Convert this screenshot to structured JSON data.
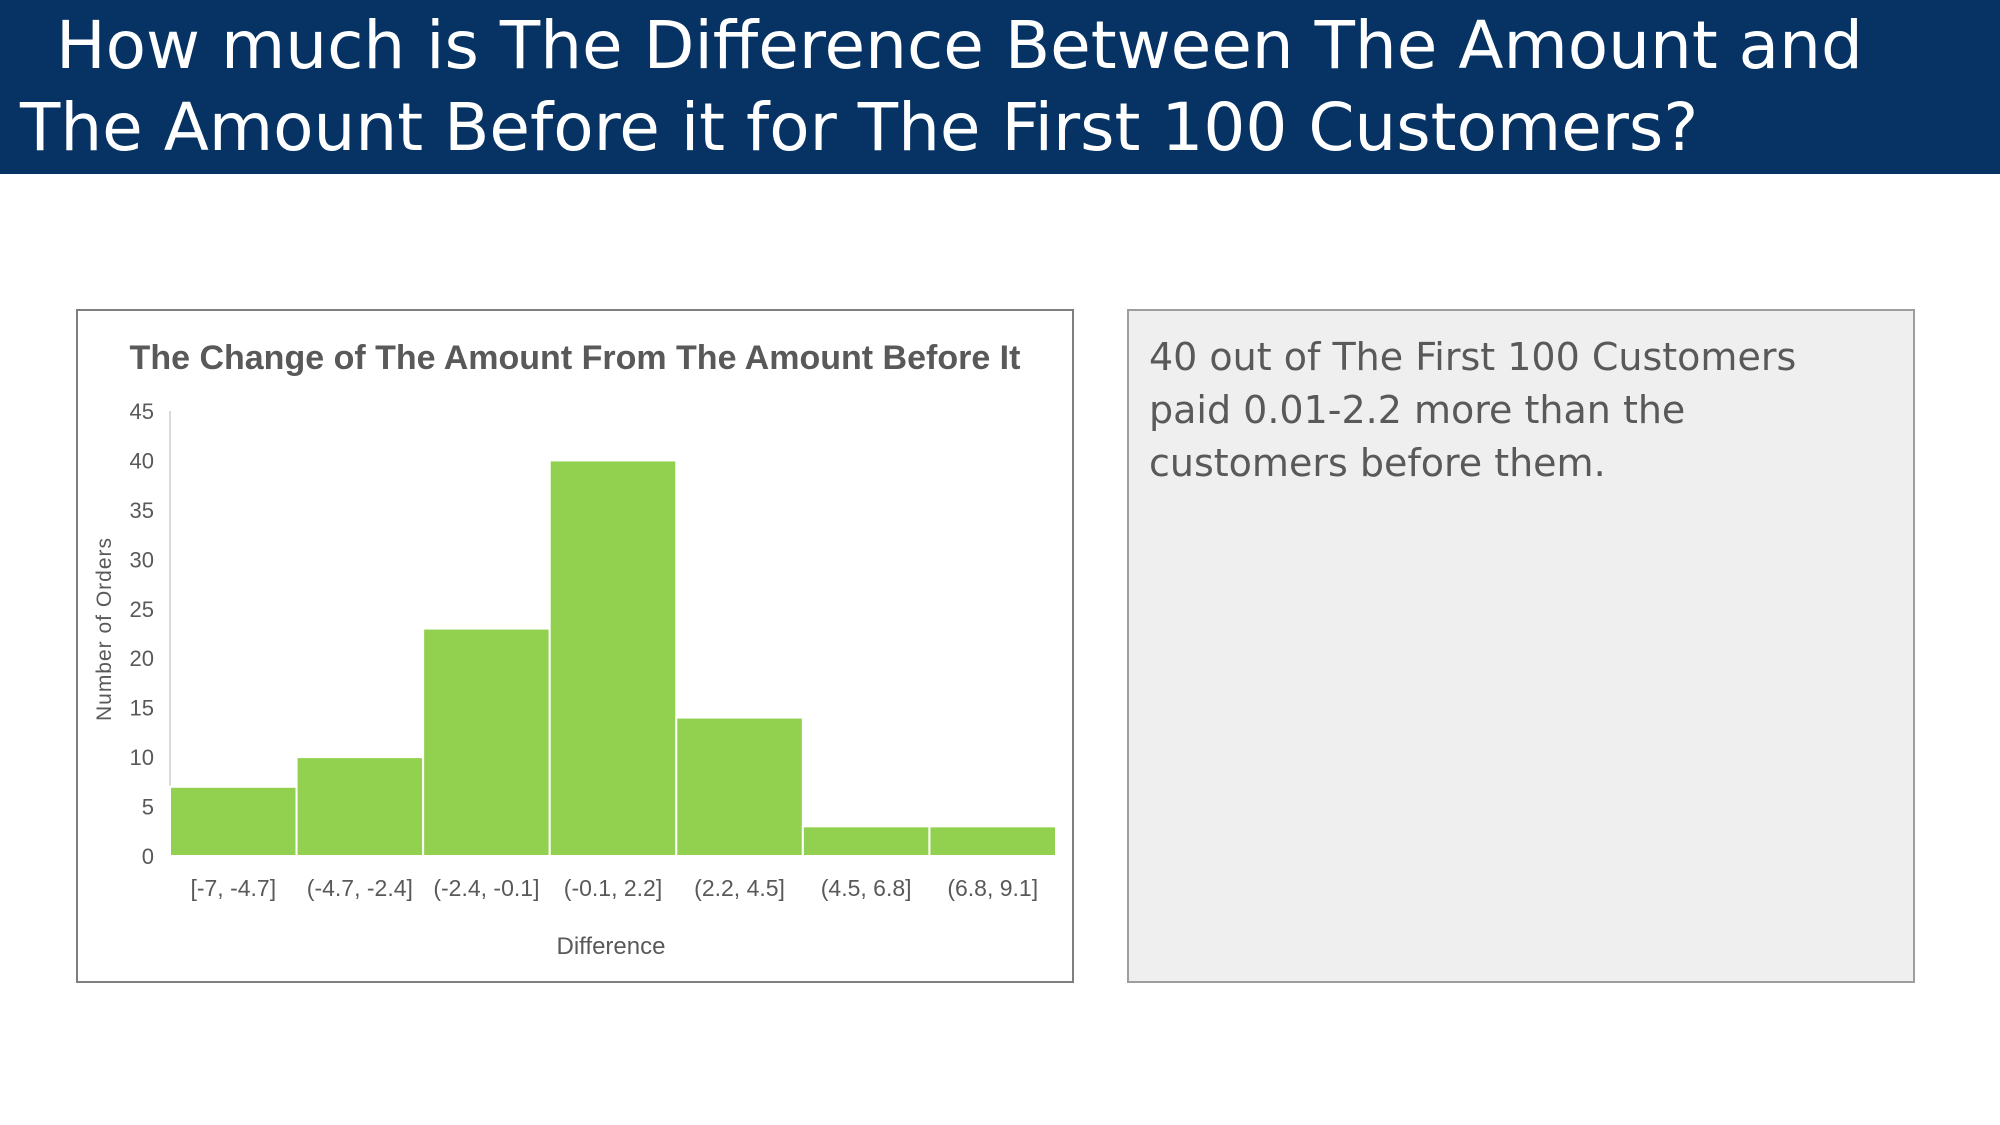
{
  "header": {
    "title": "How much is The Difference Between The Amount and The Amount Before it for The First 100 Customers?"
  },
  "note": {
    "text": "40 out of The First 100 Customers paid 0.01-2.2 more than the customers before them."
  },
  "colors": {
    "header_bg": "#063363",
    "bar_fill": "#92D050",
    "note_bg": "#EFEFEF"
  },
  "chart_data": {
    "type": "bar",
    "title": "The Change of The Amount From The Amount Before It",
    "xlabel": "Difference",
    "ylabel": "Number of Orders",
    "categories": [
      "[-7, -4.7]",
      "(-4.7, -2.4]",
      "(-2.4, -0.1]",
      "(-0.1, 2.2]",
      "(2.2, 4.5]",
      "(4.5, 6.8]",
      "(6.8, 9.1]"
    ],
    "values": [
      7,
      10,
      23,
      40,
      14,
      3,
      3
    ],
    "ylim": [
      0,
      45
    ],
    "yticks": [
      0,
      5,
      10,
      15,
      20,
      25,
      30,
      35,
      40,
      45
    ],
    "grid": false,
    "legend": "none"
  }
}
